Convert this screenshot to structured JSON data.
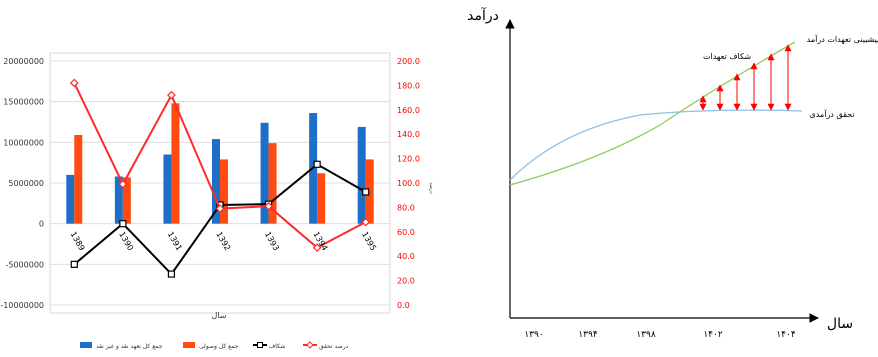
{
  "chart_data": [
    {
      "type": "bar+line",
      "xlabel": "سال",
      "ylabel_right": "درصد",
      "categories": [
        "1389",
        "1390",
        "1391",
        "1392",
        "1393",
        "1394",
        "1395"
      ],
      "ylim_left": [
        -10000000,
        20000000
      ],
      "yticks_left": [
        "20000000",
        "15000000",
        "10000000",
        "5000000",
        "0",
        "-5000000",
        "-10000000"
      ],
      "ylim_right": [
        0,
        200
      ],
      "yticks_right": [
        "200.0",
        "180.0",
        "160.0",
        "140.0",
        "120.0",
        "100.0",
        "80.0",
        "60.0",
        "40.0",
        "20.0",
        "0.0"
      ],
      "grid": "horizontal",
      "legend_position": "bottom",
      "series": [
        {
          "name": "جمع کل تعهد نقد و غیر نقد",
          "type": "bar",
          "axis": "left",
          "color": "#1f6fc8",
          "values": [
            6000000,
            5800000,
            8500000,
            10400000,
            12400000,
            13600000,
            11900000
          ]
        },
        {
          "name": "جمع کل وصولی",
          "type": "bar",
          "axis": "left",
          "color": "#ff4b12",
          "values": [
            10900000,
            5700000,
            14800000,
            7900000,
            9900000,
            6200000,
            7900000
          ]
        },
        {
          "name": "شکاف",
          "type": "line",
          "axis": "left",
          "color": "#000000",
          "values": [
            -5000000,
            0,
            -6200000,
            2300000,
            2400000,
            7300000,
            3900000
          ]
        },
        {
          "name": "درصد تحقق",
          "type": "line",
          "axis": "right",
          "color": "#ff2a2a",
          "values": [
            182,
            99,
            172,
            79,
            81,
            47,
            68
          ]
        }
      ]
    },
    {
      "type": "line",
      "ylabel": "درآمد",
      "xlabel": "سال",
      "x_ticks": [
        "۱۳۹۰",
        "۱۳۹۴",
        "۱۳۹۸",
        "۱۴۰۲",
        "۱۴۰۴"
      ],
      "series": [
        {
          "name": "پیشبینی تعهدات درآمد",
          "color": "#8dce5c"
        },
        {
          "name": "تحقق درآمدی",
          "color": "#8ec0ea"
        }
      ],
      "annotations": [
        "شکاف تعهدات"
      ],
      "arrow_color": "#ff0000"
    }
  ]
}
